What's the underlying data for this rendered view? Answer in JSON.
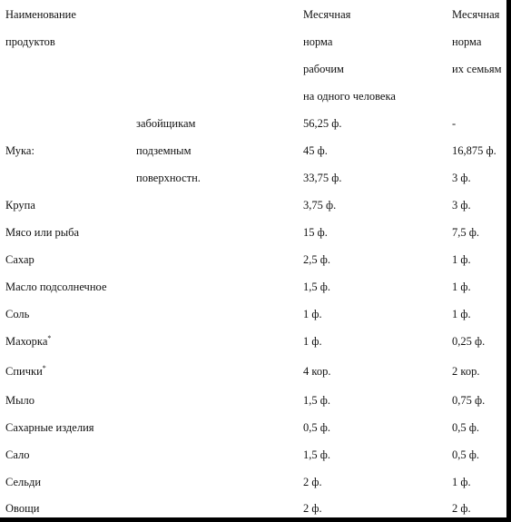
{
  "header": {
    "name_line1": "Наименование",
    "name_line2": "продуктов",
    "workers_line1": "Месячная",
    "workers_line2": "норма",
    "workers_line3": "рабочим",
    "workers_line4": "на одного человека",
    "families_line1": "Месячная",
    "families_line2": "норма",
    "families_line3": "их семьям"
  },
  "flour": {
    "name": "Мука:",
    "rows": [
      {
        "group": "забойщикам",
        "workers": "56,25 ф.",
        "families": "-"
      },
      {
        "group": "подземным",
        "workers": "45 ф.",
        "families": "16,875 ф."
      },
      {
        "group": "поверхностн.",
        "workers": "33,75 ф.",
        "families": "3 ф."
      }
    ]
  },
  "rows": [
    {
      "name": "Крупа",
      "mark": "",
      "workers": "3,75 ф.",
      "families": "3 ф."
    },
    {
      "name": "Мясо или рыба",
      "mark": "",
      "workers": "15 ф.",
      "families": "7,5 ф."
    },
    {
      "name": "Сахар",
      "mark": "",
      "workers": "2,5 ф.",
      "families": "1 ф."
    },
    {
      "name": "Масло подсолнечное",
      "mark": "",
      "workers": "1,5 ф.",
      "families": "1 ф."
    },
    {
      "name": "Соль",
      "mark": "",
      "workers": "1 ф.",
      "families": "1 ф."
    },
    {
      "name": "Махорка",
      "mark": "*",
      "workers": "1 ф.",
      "families": "0,25 ф."
    },
    {
      "name": "Спички",
      "mark": "*",
      "workers": "4 кор.",
      "families": "2 кор."
    },
    {
      "name": "Мыло",
      "mark": "",
      "workers": "1,5 ф.",
      "families": "0,75 ф."
    },
    {
      "name": "Сахарные изделия",
      "mark": "",
      "workers": "0,5 ф.",
      "families": "0,5 ф."
    },
    {
      "name": "Сало",
      "mark": "",
      "workers": "1,5 ф.",
      "families": "0,5 ф."
    },
    {
      "name": "Сельди",
      "mark": "",
      "workers": "2 ф.",
      "families": "1 ф."
    },
    {
      "name": "Овощи",
      "mark": "",
      "workers": "2 ф.",
      "families": "2 ф."
    }
  ]
}
